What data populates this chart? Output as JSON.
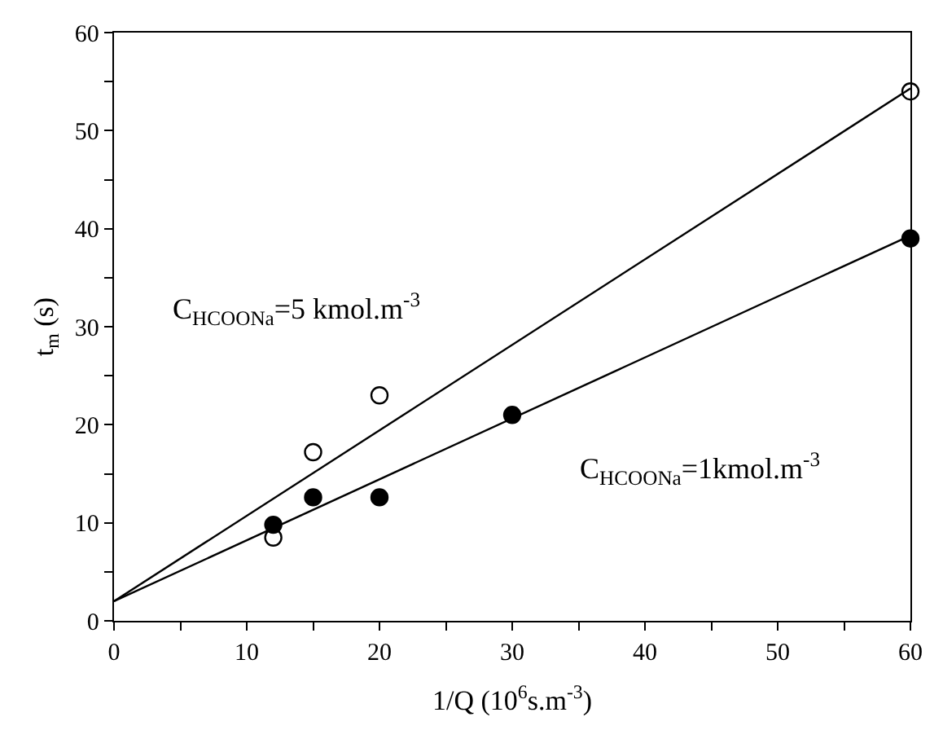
{
  "chart_data": {
    "type": "scatter",
    "xlabel": "1/Q (10$^{6}$s.m$^{-3}$)",
    "ylabel": "t$_{m}$ (s)",
    "xlim": [
      0,
      60
    ],
    "ylim": [
      0,
      60
    ],
    "xticks": [
      0,
      {
        "value": 5,
        "label": null
      },
      10,
      {
        "value": 15,
        "label": null
      },
      20,
      {
        "value": 25,
        "label": null
      },
      30,
      {
        "value": 35,
        "label": null
      },
      40,
      {
        "value": 45,
        "label": null
      },
      50,
      {
        "value": 55,
        "label": null
      },
      60
    ],
    "yticks": [
      0,
      {
        "value": 5,
        "label": null
      },
      10,
      {
        "value": 15,
        "label": null
      },
      20,
      {
        "value": 25,
        "label": null
      },
      30,
      {
        "value": 35,
        "label": null
      },
      40,
      {
        "value": 45,
        "label": null
      },
      50,
      {
        "value": 55,
        "label": null
      },
      60
    ],
    "marker": "circle",
    "series": [
      {
        "color": "#ffffff",
        "x": [
          12,
          15,
          20,
          60
        ],
        "values": [
          8.5,
          17.2,
          23,
          54
        ]
      },
      {
        "color": "#000000",
        "x": [
          12,
          15,
          20,
          30,
          60
        ],
        "values": [
          9.8,
          12.6,
          12.6,
          21,
          39
        ]
      },
      {
        "type": "line",
        "color": "#000000",
        "marker": "none",
        "line_style": "solid",
        "x": [
          0,
          60
        ],
        "values": [
          2,
          54.3
        ]
      },
      {
        "type": "line",
        "color": "#000000",
        "marker": "none",
        "line_style": "solid",
        "x": [
          0,
          60
        ],
        "values": [
          2,
          39.3
        ]
      }
    ],
    "annotations": [
      "C$_{HCOONa}$=5 kmol.m$^{-3}$",
      "C$_{HCOONa}$=1kmol.m$^{-3}$"
    ]
  }
}
